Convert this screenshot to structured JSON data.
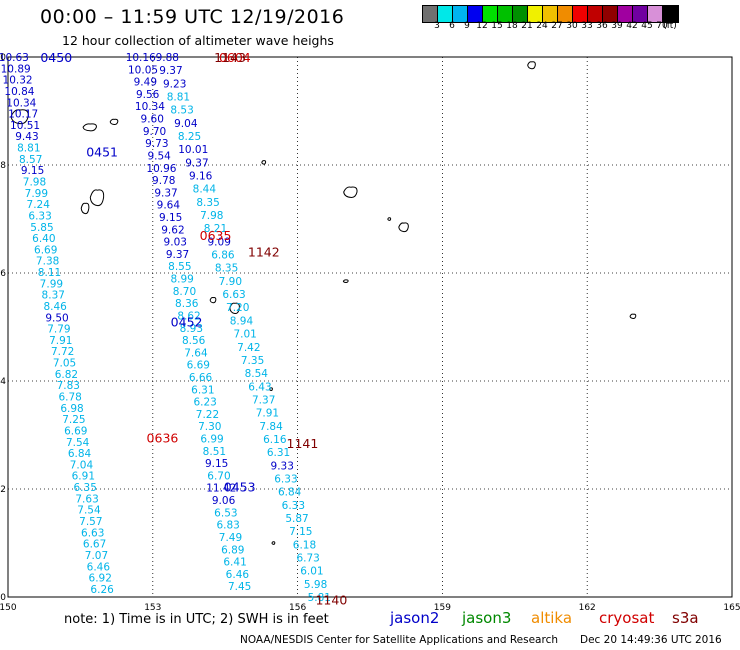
{
  "title": "00:00 – 11:59 UTC 12/19/2016",
  "subtitle": "12 hour collection of altimeter wave heighs",
  "colorbar": {
    "colors": [
      "#707070",
      "#00e8e8",
      "#00b4f0",
      "#0000f0",
      "#00e000",
      "#00c000",
      "#009000",
      "#f0f000",
      "#f0c000",
      "#f08c00",
      "#f00000",
      "#c00000",
      "#900000",
      "#a000a0",
      "#7000a0",
      "#d890d8",
      "#000000"
    ],
    "labels": [
      "3",
      "6",
      "9",
      "12",
      "15",
      "18",
      "21",
      "24",
      "27",
      "30",
      "33",
      "36",
      "39",
      "42",
      "45",
      "70",
      "(ft)"
    ]
  },
  "axes": {
    "lon_ticks": [
      "150",
      "153",
      "156",
      "159",
      "162",
      "165"
    ],
    "lat_ticks": [
      "0",
      "2",
      "4",
      "6",
      "8",
      "10"
    ]
  },
  "note": "note: 1) Time is in UTC; 2) SWH is in feet",
  "satellites": [
    {
      "name": "jason2",
      "color": "#0000c8"
    },
    {
      "name": "jason3",
      "color": "#008800"
    },
    {
      "name": "altika",
      "color": "#f08c00"
    },
    {
      "name": "cryosat",
      "color": "#d00000"
    },
    {
      "name": "s3a",
      "color": "#800000"
    }
  ],
  "credit": "NOAA/NESDIS Center for Satellite Applications and Research",
  "credit_date": "Dec 20 14:49:36 UTC 2016",
  "map_data": {
    "time_labels": [
      {
        "text": "0450",
        "lon": 151.0,
        "lat": 10.0,
        "color": "#0000c8"
      },
      {
        "text": "0451",
        "lon": 151.95,
        "lat": 8.25,
        "color": "#0000c8"
      },
      {
        "text": "0452",
        "lon": 153.7,
        "lat": 5.1,
        "color": "#0000c8"
      },
      {
        "text": "0453",
        "lon": 154.8,
        "lat": 2.05,
        "color": "#0000c8"
      },
      {
        "text": "0604",
        "lon": 154.7,
        "lat": 10.0,
        "color": "#d00000"
      },
      {
        "text": "0635",
        "lon": 154.3,
        "lat": 6.7,
        "color": "#d00000"
      },
      {
        "text": "0636",
        "lon": 153.2,
        "lat": 2.95,
        "color": "#d00000"
      },
      {
        "text": "1143",
        "lon": 154.6,
        "lat": 10.0,
        "color": "#800000"
      },
      {
        "text": "1142",
        "lon": 155.3,
        "lat": 6.4,
        "color": "#800000"
      },
      {
        "text": "1141",
        "lon": 156.1,
        "lat": 2.85,
        "color": "#800000"
      },
      {
        "text": "1140",
        "lon": 156.7,
        "lat": -0.05,
        "color": "#800000"
      }
    ],
    "tracks": [
      {
        "sat": "jason2",
        "lon_start": 150.12,
        "lon_end": 151.95,
        "lat_start": 10.0,
        "lat_end": 0.15,
        "values": [
          "10.63",
          "10.89",
          "10.32",
          "10.84",
          "10.34",
          "10.17",
          "10.51",
          "9.43",
          "8.81",
          "8.57",
          "9.15",
          "7.98",
          "7.99",
          "7.24",
          "6.33",
          "5.85",
          "6.40",
          "6.69",
          "7.38",
          "8.11",
          "7.99",
          "8.37",
          "8.46",
          "9.50",
          "7.79",
          "7.91",
          "7.72",
          "7.05",
          "6.82",
          "7.83",
          "6.78",
          "6.98",
          "7.25",
          "6.69",
          "7.54",
          "6.84",
          "7.04",
          "6.91",
          "6.35",
          "7.63",
          "7.54",
          "7.57",
          "6.63",
          "6.67",
          "7.07",
          "6.46",
          "6.92",
          "6.26"
        ]
      },
      {
        "sat": "jason2",
        "lon_start": 152.75,
        "lon_end": 154.8,
        "lat_start": 10.0,
        "lat_end": 0.2,
        "values": [
          "10.16",
          "10.05",
          "9.49",
          "9.56",
          "10.34",
          "9.60",
          "9.70",
          "9.73",
          "9.54",
          "10.96",
          "9.78",
          "9.37",
          "9.64",
          "9.15",
          "9.62",
          "9.03",
          "9.37",
          "8.55",
          "8.99",
          "8.70",
          "8.36",
          "8.62",
          "8.93",
          "8.56",
          "7.64",
          "6.69",
          "6.66",
          "6.31",
          "6.23",
          "7.22",
          "7.30",
          "6.99",
          "8.51",
          "9.15",
          "6.70",
          "11.42",
          "9.06",
          "6.53",
          "6.83",
          "7.49",
          "6.89",
          "6.41",
          "6.46",
          "7.45"
        ]
      },
      {
        "sat": "cryosat",
        "lon_start": 153.3,
        "lon_end": 156.45,
        "lat_start": 10.0,
        "lat_end": 0.0,
        "values": [
          "9.88",
          "9.37",
          "9.23",
          "8.81",
          "8.53",
          "9.04",
          "8.25",
          "10.01",
          "9.37",
          "9.16",
          "8.44",
          "8.35",
          "7.98",
          "8.21",
          "9.09",
          "6.86",
          "8.35",
          "7.90",
          "6.63",
          "7.20",
          "8.94",
          "7.01",
          "7.42",
          "7.35",
          "8.54",
          "6.43",
          "7.37",
          "7.91",
          "7.84",
          "6.16",
          "6.31",
          "9.33",
          "6.33",
          "6.84",
          "6.33",
          "5.87",
          "7.15",
          "6.18",
          "6.73",
          "6.01",
          "5.98",
          "5.81"
        ]
      }
    ],
    "islands": [
      {
        "lon": 150.25,
        "lat": 8.9,
        "w": 18,
        "h": 16
      },
      {
        "lon": 151.7,
        "lat": 8.7,
        "w": 14,
        "h": 8
      },
      {
        "lon": 152.2,
        "lat": 8.8,
        "w": 8,
        "h": 6
      },
      {
        "lon": 151.85,
        "lat": 7.4,
        "w": 14,
        "h": 18
      },
      {
        "lon": 151.6,
        "lat": 7.2,
        "w": 8,
        "h": 12
      },
      {
        "lon": 154.7,
        "lat": 5.35,
        "w": 10,
        "h": 12
      },
      {
        "lon": 154.25,
        "lat": 5.5,
        "w": 6,
        "h": 6
      },
      {
        "lon": 155.3,
        "lat": 8.05,
        "w": 4,
        "h": 4
      },
      {
        "lon": 157.1,
        "lat": 7.5,
        "w": 14,
        "h": 12
      },
      {
        "lon": 158.2,
        "lat": 6.85,
        "w": 10,
        "h": 10
      },
      {
        "lon": 157.9,
        "lat": 7.0,
        "w": 3,
        "h": 3
      },
      {
        "lon": 160.85,
        "lat": 9.85,
        "w": 8,
        "h": 8
      },
      {
        "lon": 162.95,
        "lat": 5.2,
        "w": 6,
        "h": 5
      },
      {
        "lon": 157.0,
        "lat": 5.85,
        "w": 5,
        "h": 3
      },
      {
        "lon": 155.45,
        "lat": 3.85,
        "w": 3,
        "h": 3
      },
      {
        "lon": 155.5,
        "lat": 1.0,
        "w": 3,
        "h": 3
      }
    ]
  }
}
